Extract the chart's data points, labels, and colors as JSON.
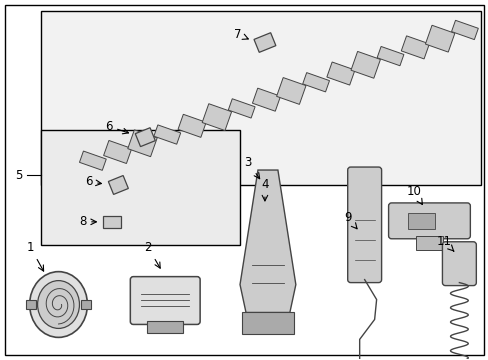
{
  "bg_color": "#ffffff",
  "line_color": "#000000",
  "text_color": "#000000",
  "component_color": "#444444",
  "fill_color": "#cccccc",
  "fill_light": "#e0e0e0",
  "font_size": 8.5
}
